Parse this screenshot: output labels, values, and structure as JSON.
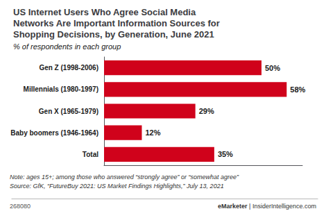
{
  "chart_data": {
    "type": "bar",
    "orientation": "horizontal",
    "title": "US Internet Users Who Agree Social Media\nNetworks Are Important Information Sources for\nShopping Decisions, by Generation, June 2021",
    "subtitle": "% of respondents in each group",
    "categories": [
      "Gen Z (1998-2006)",
      "Millennials (1980-1997)",
      "Gen X (1965-1979)",
      "Baby boomers (1946-1964)",
      "Total"
    ],
    "values": [
      50,
      58,
      29,
      12,
      35
    ],
    "value_labels": [
      "50%",
      "58%",
      "29%",
      "12%",
      "35%"
    ],
    "data_labels": true,
    "color": "#d0021b",
    "xlim": [
      0,
      63
    ],
    "grid": false,
    "tick_labels": "y",
    "annotations": [
      "Note: ages 15+; among those who answered “strongly agree” or “somewhat agree”",
      "Source: GfK, “FutureBuy 2021: US Market Findings Highlights,” July 13, 2021",
      "268080",
      "eMarketer",
      " | InsiderIntelligence.com"
    ]
  }
}
